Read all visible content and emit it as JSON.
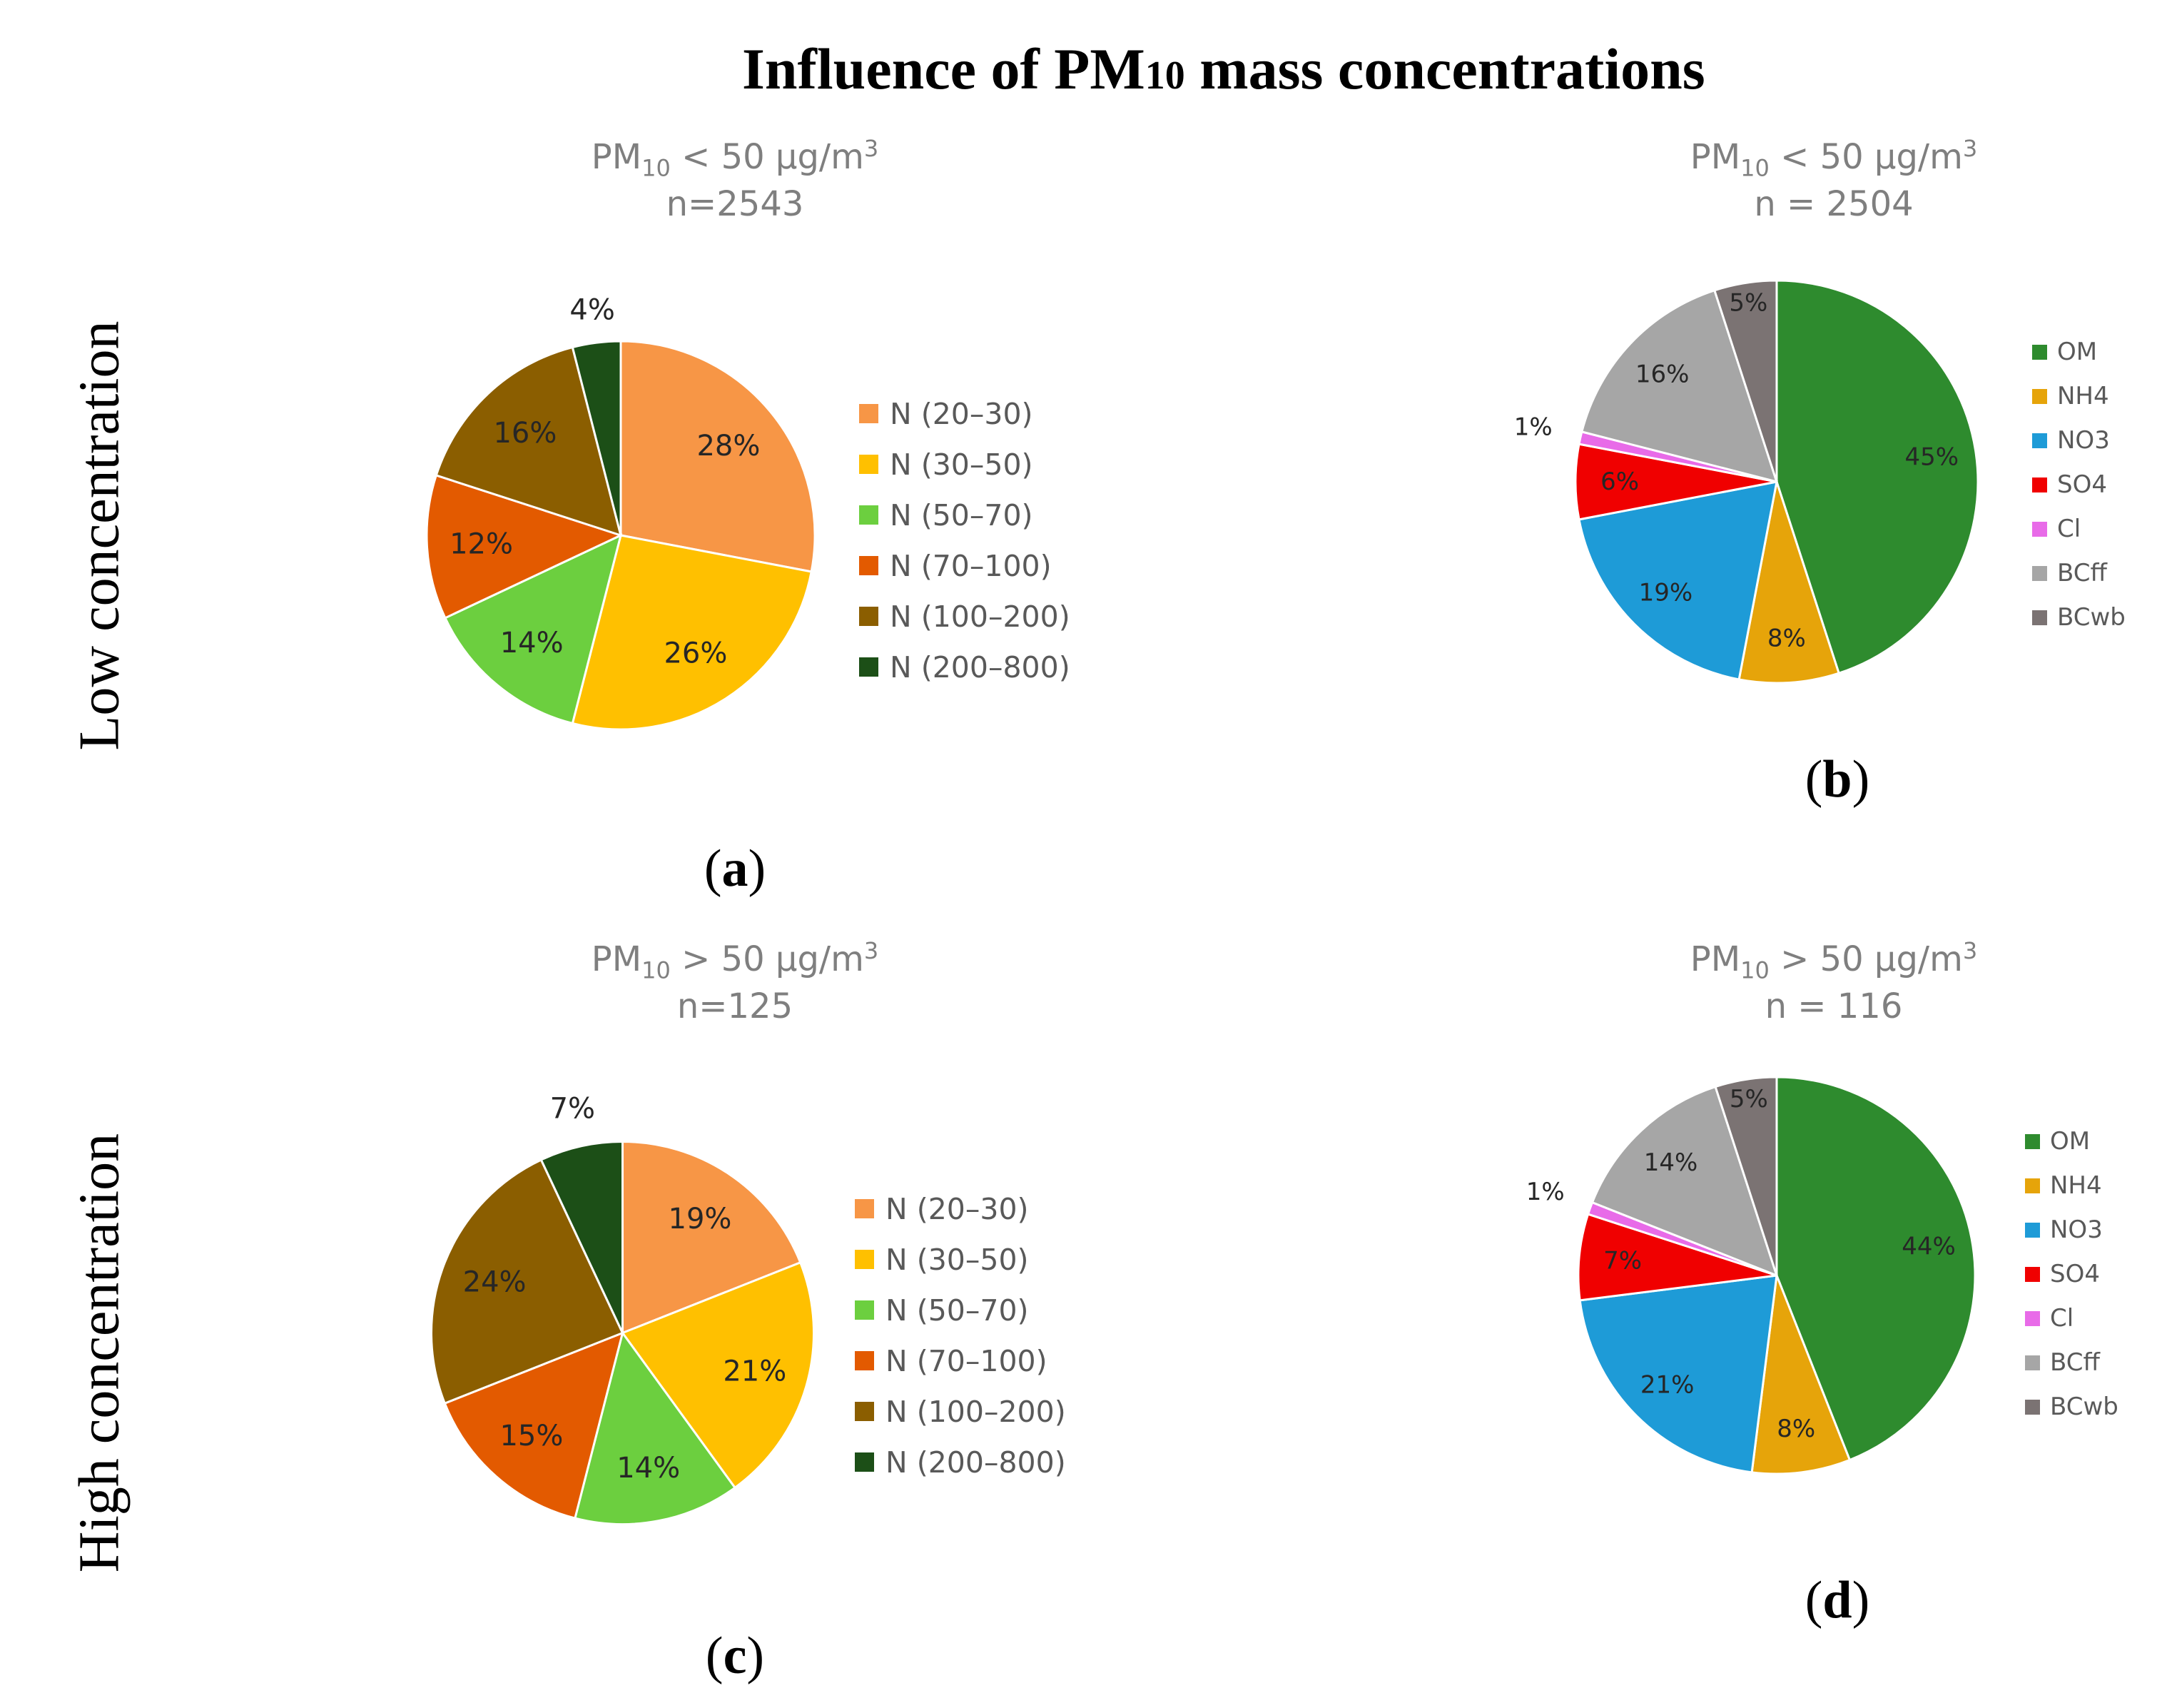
{
  "main_title": "Influence of PM",
  "main_title_sub": "10",
  "main_title_rest": " mass concentrations",
  "row_labels": {
    "low": "Low concentration",
    "high": "High concentration"
  },
  "colors": {
    "size_bins": [
      "#F79646",
      "#FFC000",
      "#6CCF3F",
      "#E35A00",
      "#8B5E00",
      "#1C4F17"
    ],
    "species": [
      "#2E8B2E",
      "#E6A40A",
      "#1E9BD7",
      "#F00000",
      "#E86BE8",
      "#A6A6A6",
      "#7B7373"
    ]
  },
  "panels": {
    "a": {
      "label_open": "(",
      "label_letter": "a",
      "label_close": ")",
      "title_pm": "PM",
      "title_sub": "10",
      "title_rest": " < 50 µg/m",
      "title_sup": "3",
      "n_text": "n=2543"
    },
    "b": {
      "label_open": "(",
      "label_letter": "b",
      "label_close": ")",
      "title_pm": "PM",
      "title_sub": "10",
      "title_rest": " < 50 µg/m",
      "title_sup": "3",
      "n_text": "n = 2504"
    },
    "c": {
      "label_open": "(",
      "label_letter": "c",
      "label_close": ")",
      "title_pm": "PM",
      "title_sub": "10",
      "title_rest": " > 50 µg/m",
      "title_sup": "3",
      "n_text": "n=125"
    },
    "d": {
      "label_open": "(",
      "label_letter": "d",
      "label_close": ")",
      "title_pm": "PM",
      "title_sub": "10",
      "title_rest": " > 50 µg/m",
      "title_sup": "3",
      "n_text": "n = 116"
    }
  },
  "chart_data": [
    {
      "panel": "a",
      "type": "pie",
      "title": "PM10 < 50 µg/m3",
      "subtitle": "n=2543",
      "categories": [
        "N (20–30)",
        "N (30–50)",
        "N (50–70)",
        "N (70–100)",
        "N (100–200)",
        "N (200–800)"
      ],
      "values": [
        28,
        26,
        14,
        12,
        16,
        4
      ],
      "data_labels": [
        "28%",
        "26%",
        "14%",
        "12%",
        "16%",
        "4%"
      ],
      "legend": "right"
    },
    {
      "panel": "b",
      "type": "pie",
      "title": "PM10 < 50 µg/m3",
      "subtitle": "n = 2504",
      "categories": [
        "OM",
        "NH4",
        "NO3",
        "SO4",
        "Cl",
        "BCff",
        "BCwb"
      ],
      "values": [
        45,
        8,
        19,
        6,
        1,
        16,
        5
      ],
      "data_labels": [
        "45%",
        "8%",
        "19%",
        "6%",
        "1%",
        "16%",
        "5%"
      ],
      "legend": "right"
    },
    {
      "panel": "c",
      "type": "pie",
      "title": "PM10 > 50 µg/m3",
      "subtitle": "n=125",
      "categories": [
        "N (20–30)",
        "N (30–50)",
        "N (50–70)",
        "N (70–100)",
        "N (100–200)",
        "N (200–800)"
      ],
      "values": [
        19,
        21,
        14,
        15,
        24,
        7
      ],
      "data_labels": [
        "19%",
        "21%",
        "14%",
        "15%",
        "24%",
        "7%"
      ],
      "legend": "right"
    },
    {
      "panel": "d",
      "type": "pie",
      "title": "PM10 > 50 µg/m3",
      "subtitle": "n = 116",
      "categories": [
        "OM",
        "NH4",
        "NO3",
        "SO4",
        "Cl",
        "BCff",
        "BCwb"
      ],
      "values": [
        44,
        8,
        21,
        7,
        1,
        14,
        5
      ],
      "data_labels": [
        "44%",
        "8%",
        "21%",
        "7%",
        "1%",
        "14%",
        "5%"
      ],
      "legend": "right"
    }
  ]
}
